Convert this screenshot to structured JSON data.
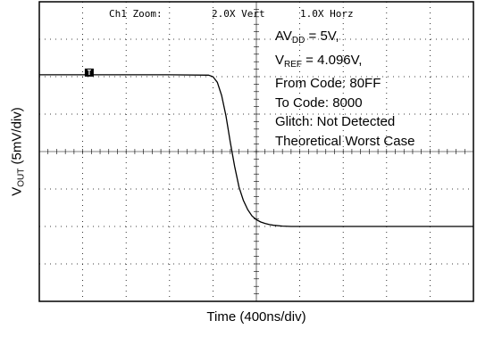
{
  "chart_data": {
    "type": "line",
    "header": {
      "zoom_label": "Ch1 Zoom:",
      "vert": "2.0X Vert",
      "horz": "1.0X Horz"
    },
    "ylabel": {
      "main": "V",
      "sub": "OUT",
      "rest": " (5mV/div)"
    },
    "xlabel": "Time (400ns/div)",
    "marker": "T",
    "annotations": {
      "av_main": "AV",
      "av_sub": "DD",
      "av_rest": " = 5V,",
      "vref_main": "V",
      "vref_sub": "REF",
      "vref_rest": " = 4.096V,",
      "from_code": "From Code: 80FF",
      "to_code": "To Code: 8000",
      "glitch": "Glitch: Not Detected",
      "worst_case": "Theoretical Worst Case"
    },
    "xlim": [
      0,
      10
    ],
    "ylim": [
      -4,
      4
    ],
    "grid": true,
    "series": [
      {
        "x": [
          0,
          1,
          2,
          3,
          3.9,
          4.0,
          4.1,
          4.2,
          4.3,
          4.4,
          4.5,
          4.6,
          4.7,
          4.8,
          4.9,
          5.0,
          5.1,
          5.2,
          5.3,
          5.4,
          5.6,
          5.8,
          6.2,
          7,
          8,
          9,
          10
        ],
        "y": [
          2.05,
          2.05,
          2.05,
          2.05,
          2.04,
          2.0,
          1.85,
          1.5,
          0.95,
          0.25,
          -0.4,
          -0.95,
          -1.3,
          -1.55,
          -1.72,
          -1.82,
          -1.88,
          -1.92,
          -1.95,
          -1.97,
          -1.99,
          -2.0,
          -2.0,
          -2.0,
          -2.0,
          -2.0,
          -2.0
        ]
      }
    ]
  }
}
